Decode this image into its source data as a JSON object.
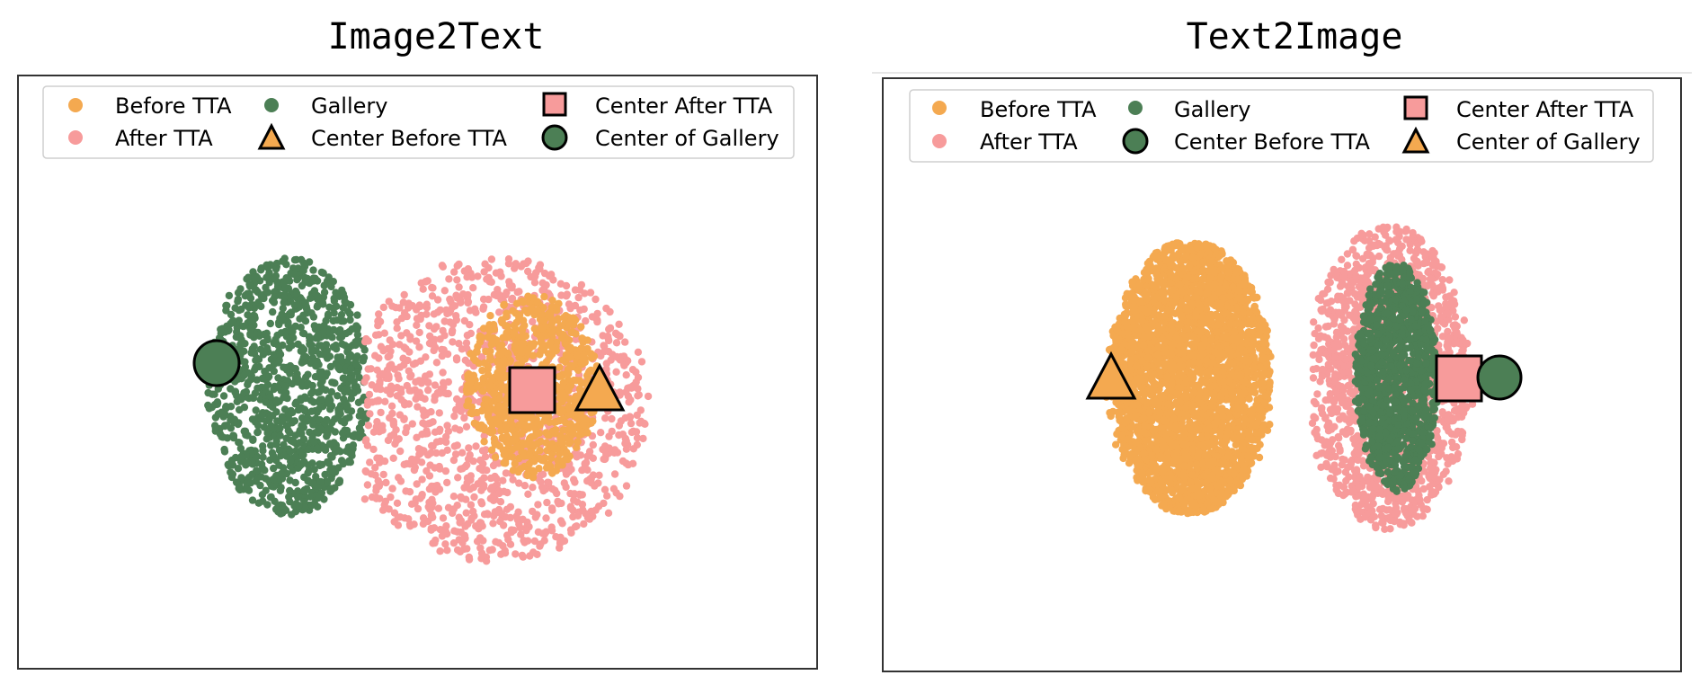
{
  "colors": {
    "before_tta": "#F4A950",
    "after_tta": "#F79B9B",
    "gallery": "#4C7F55",
    "marker_stroke": "#000000",
    "frame": "#333333"
  },
  "chart_data": [
    {
      "type": "scatter",
      "title": "Image2Text",
      "xlabel": "",
      "ylabel": "",
      "grid": false,
      "legend_placement": "top-center",
      "legend": {
        "before_tta": "Before TTA",
        "after_tta": "After TTA",
        "gallery": "Gallery",
        "center_before": "Center Before TTA",
        "center_after": "Center After TTA",
        "center_gallery": "Center of Gallery"
      },
      "clusters": {
        "gallery": {
          "center": [
            -0.85,
            0.0
          ],
          "spread": [
            0.55,
            0.85
          ],
          "count": 1100
        },
        "after_tta": {
          "center": [
            0.5,
            -0.15
          ],
          "spread": [
            1.05,
            1.0
          ],
          "count": 1300
        },
        "before_tta": {
          "center": [
            0.75,
            0.0
          ],
          "spread": [
            0.45,
            0.6
          ],
          "count": 750
        }
      },
      "centers": {
        "center_before": [
          0.75,
          0.0
        ],
        "center_after": [
          0.45,
          0.0
        ],
        "center_gallery": [
          -0.85,
          0.1
        ]
      }
    },
    {
      "type": "scatter",
      "title": "Text2Image",
      "xlabel": "",
      "ylabel": "",
      "grid": false,
      "legend_placement": "top-center",
      "legend": {
        "before_tta": "Before TTA",
        "after_tta": "After TTA",
        "gallery": "Gallery",
        "center_before": "Center Before TTA",
        "center_after": "Center After TTA",
        "center_gallery": "Center of Gallery"
      },
      "clusters": {
        "before_tta": {
          "center": [
            -0.6,
            0.0
          ],
          "spread": [
            0.55,
            0.9
          ],
          "count": 3200
        },
        "after_tta": {
          "center": [
            0.7,
            0.0
          ],
          "spread": [
            0.55,
            1.0
          ],
          "count": 1500
        },
        "gallery": {
          "center": [
            0.75,
            0.0
          ],
          "spread": [
            0.28,
            0.75
          ],
          "count": 1200
        }
      },
      "centers": {
        "center_before": [
          -0.6,
          0.0
        ],
        "center_after": [
          0.7,
          0.0
        ],
        "center_gallery": [
          0.78,
          0.0
        ]
      }
    }
  ]
}
